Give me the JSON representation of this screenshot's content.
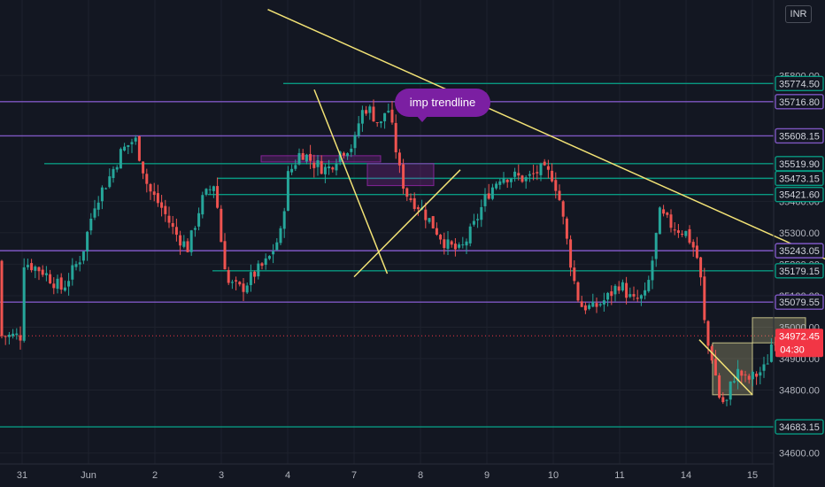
{
  "currency": "INR",
  "annotation": {
    "text": "imp trendline"
  },
  "chart_data": {
    "type": "candlestick",
    "title": "",
    "ylim": [
      34565,
      36040
    ],
    "y_ticks": [
      34600,
      34800,
      34900,
      35000,
      35100,
      35200,
      35300,
      35400,
      35800
    ],
    "y_tick_labels": [
      "34600.00",
      "34800.00",
      "34900.00",
      "35000.00",
      "35100.00",
      "35200.00",
      "35300.00",
      "35400.00",
      "35800.00"
    ],
    "x_ticks": [
      "31",
      "Jun",
      "2",
      "3",
      "4",
      "7",
      "8",
      "9",
      "10",
      "11",
      "14",
      "15"
    ],
    "last_price": {
      "value": "34972.45",
      "countdown": "04:30",
      "color": "#f23645"
    },
    "levels": [
      {
        "price": 35774.5,
        "label": "35774.50",
        "color": "#089981"
      },
      {
        "price": 35716.8,
        "label": "35716.80",
        "color": "#7e57c2"
      },
      {
        "price": 35608.15,
        "label": "35608.15",
        "color": "#7e57c2"
      },
      {
        "price": 35519.9,
        "label": "35519.90",
        "color": "#089981"
      },
      {
        "price": 35473.15,
        "label": "35473.15",
        "color": "#089981"
      },
      {
        "price": 35421.6,
        "label": "35421.60",
        "color": "#089981"
      },
      {
        "price": 35243.05,
        "label": "35243.05",
        "color": "#7e57c2"
      },
      {
        "price": 35179.15,
        "label": "35179.15",
        "color": "#089981"
      },
      {
        "price": 35079.55,
        "label": "35079.55",
        "color": "#7e57c2"
      },
      {
        "price": 34683.15,
        "label": "34683.15",
        "color": "#089981"
      }
    ],
    "close_path": [
      [
        0,
        35210
      ],
      [
        0.3,
        35180
      ],
      [
        0.6,
        35120
      ],
      [
        0.9,
        35230
      ],
      [
        1.1,
        35400
      ],
      [
        1.3,
        35470
      ],
      [
        1.5,
        35560
      ],
      [
        1.7,
        35600
      ],
      [
        1.9,
        35440
      ],
      [
        2.1,
        35380
      ],
      [
        2.3,
        35300
      ],
      [
        2.5,
        35250
      ],
      [
        2.7,
        35400
      ],
      [
        2.9,
        35460
      ],
      [
        3.0,
        35270
      ],
      [
        3.1,
        35140
      ],
      [
        3.3,
        35120
      ],
      [
        3.5,
        35170
      ],
      [
        3.7,
        35210
      ],
      [
        3.9,
        35300
      ],
      [
        4.0,
        35480
      ],
      [
        4.2,
        35560
      ],
      [
        4.4,
        35520
      ],
      [
        4.6,
        35500
      ],
      [
        4.8,
        35560
      ],
      [
        5.0,
        35580
      ],
      [
        5.1,
        35680
      ],
      [
        5.2,
        35700
      ],
      [
        5.4,
        35640
      ],
      [
        5.5,
        35710
      ],
      [
        5.6,
        35600
      ],
      [
        5.7,
        35480
      ],
      [
        5.8,
        35420
      ],
      [
        6.0,
        35380
      ],
      [
        6.2,
        35320
      ],
      [
        6.4,
        35260
      ],
      [
        6.6,
        35240
      ],
      [
        6.8,
        35320
      ],
      [
        7.0,
        35420
      ],
      [
        7.2,
        35480
      ],
      [
        7.4,
        35480
      ],
      [
        7.6,
        35470
      ],
      [
        7.8,
        35500
      ],
      [
        8.0,
        35480
      ],
      [
        8.1,
        35400
      ],
      [
        8.2,
        35280
      ],
      [
        8.3,
        35160
      ],
      [
        8.4,
        35070
      ],
      [
        8.6,
        35060
      ],
      [
        8.8,
        35090
      ],
      [
        9.0,
        35140
      ],
      [
        9.2,
        35080
      ],
      [
        9.4,
        35100
      ],
      [
        9.5,
        35220
      ],
      [
        9.6,
        35360
      ],
      [
        9.8,
        35320
      ],
      [
        10.0,
        35300
      ],
      [
        10.1,
        35260
      ],
      [
        10.2,
        35200
      ],
      [
        10.3,
        34960
      ],
      [
        10.4,
        34900
      ],
      [
        10.5,
        34780
      ],
      [
        10.6,
        34750
      ],
      [
        10.7,
        34840
      ],
      [
        10.8,
        34860
      ],
      [
        10.9,
        34830
      ],
      [
        11.0,
        34840
      ],
      [
        11.2,
        34870
      ],
      [
        11.3,
        34960
      ],
      [
        11.4,
        34972
      ]
    ],
    "trendlines": [
      {
        "from": [
          3.7,
          36010
        ],
        "to": [
          14.5,
          34990
        ],
        "color": "#f2e275"
      },
      {
        "from": [
          4.4,
          35755
        ],
        "to": [
          5.5,
          35170
        ],
        "color": "#f2e275"
      },
      {
        "from": [
          5.0,
          35160
        ],
        "to": [
          6.6,
          35500
        ],
        "color": "#f2e275"
      },
      {
        "from": [
          10.2,
          34960
        ],
        "to": [
          11.0,
          34785
        ],
        "color": "#f2e275"
      }
    ],
    "zones": [
      {
        "x0": 3.6,
        "x1": 5.4,
        "y0": 35525,
        "y1": 35545,
        "color": "#9c27b0"
      },
      {
        "x0": 5.2,
        "x1": 6.2,
        "y0": 35450,
        "y1": 35520,
        "color": "#9c27b0"
      },
      {
        "x0": 10.4,
        "x1": 11.0,
        "y0": 34785,
        "y1": 34950,
        "color": "#e6e19a"
      },
      {
        "x0": 11.0,
        "x1": 11.8,
        "y0": 34950,
        "y1": 35030,
        "color": "#e6e19a"
      }
    ]
  }
}
